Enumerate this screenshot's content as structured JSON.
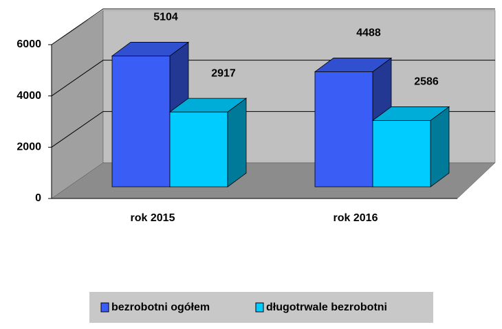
{
  "chart_data": {
    "type": "bar3d",
    "categories": [
      "rok 2015",
      "rok 2016"
    ],
    "series": [
      {
        "name": "bezrobotni ogółem",
        "color": "#3a5ef5",
        "values": [
          5104,
          4488
        ]
      },
      {
        "name": "długotrwale bezrobotni",
        "color": "#00ccff",
        "values": [
          2917,
          2586
        ]
      }
    ],
    "ylim": [
      0,
      6000
    ],
    "yticks": [
      0,
      2000,
      4000,
      6000
    ],
    "grid": true,
    "legend": "bottom"
  }
}
